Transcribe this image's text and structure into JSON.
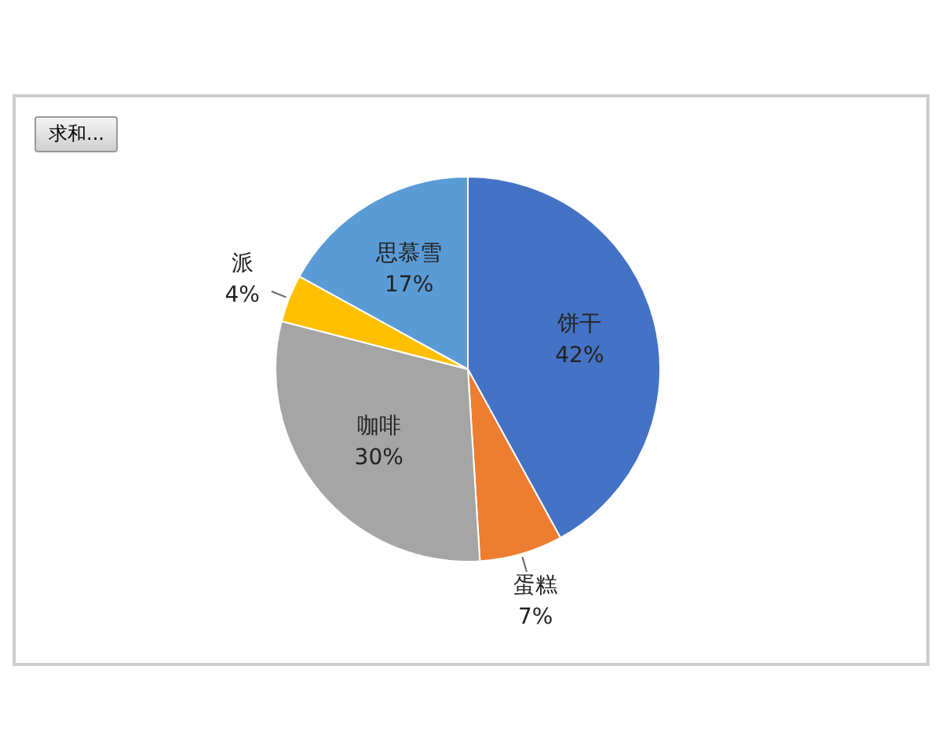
{
  "chart_data": {
    "type": "pie",
    "categories": [
      "饼干",
      "蛋糕",
      "咖啡",
      "派",
      "思慕雪"
    ],
    "values": [
      42,
      7,
      30,
      4,
      17
    ],
    "value_labels": [
      "42%",
      "7%",
      "30%",
      "4%",
      "17%"
    ],
    "colors": [
      "#4472c4",
      "#ed7d31",
      "#a5a5a5",
      "#ffc000",
      "#5b9bd5"
    ],
    "legend": false,
    "annotations": [
      "求和..."
    ]
  }
}
